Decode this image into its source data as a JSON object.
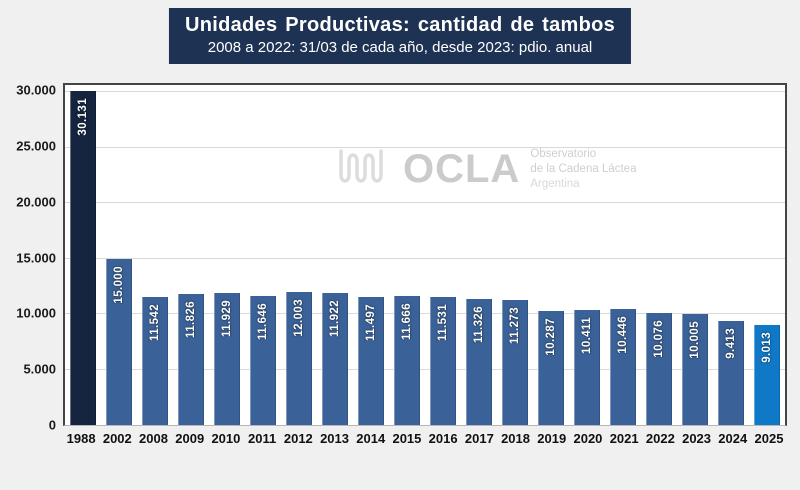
{
  "watermark": {
    "brand": "OCLA",
    "line1": "Observatorio",
    "line2": "de la Cadena Láctea",
    "line3": "Argentina"
  },
  "chart_data": {
    "type": "bar",
    "title": "Unidades Productivas: cantidad de tambos",
    "subtitle": "2008 a 2022: 31/03 de cada año, desde 2023: pdio. anual",
    "xlabel": "",
    "ylabel": "",
    "categories": [
      "1988",
      "2002",
      "2008",
      "2009",
      "2010",
      "2011",
      "2012",
      "2013",
      "2014",
      "2015",
      "2016",
      "2017",
      "2018",
      "2019",
      "2020",
      "2021",
      "2022",
      "2023",
      "2024",
      "2025"
    ],
    "values": [
      30131,
      15000,
      11542,
      11826,
      11929,
      11646,
      12003,
      11922,
      11497,
      11666,
      11531,
      11326,
      11273,
      10287,
      10411,
      10446,
      10076,
      10005,
      9413,
      9013
    ],
    "value_labels": [
      "30.131",
      "15.000",
      "11.542",
      "11.826",
      "11.929",
      "11.646",
      "12.003",
      "11.922",
      "11.497",
      "11.666",
      "11.531",
      "11.326",
      "11.273",
      "10.287",
      "10.411",
      "10.446",
      "10.076",
      "10.005",
      "9.413",
      "9.013"
    ],
    "bar_colors": [
      "#152540",
      "#3A6298",
      "#3A6298",
      "#3A6298",
      "#3A6298",
      "#3A6298",
      "#3A6298",
      "#3A6298",
      "#3A6298",
      "#3A6298",
      "#3A6298",
      "#3A6298",
      "#3A6298",
      "#3A6298",
      "#3A6298",
      "#3A6298",
      "#3A6298",
      "#3A6298",
      "#3A6298",
      "#0F79C8"
    ],
    "y_ticks": [
      {
        "value": 0,
        "label": "0"
      },
      {
        "value": 5000,
        "label": "5.000"
      },
      {
        "value": 10000,
        "label": "10.000"
      },
      {
        "value": 15000,
        "label": "15.000"
      },
      {
        "value": 20000,
        "label": "20.000"
      },
      {
        "value": 25000,
        "label": "25.000"
      },
      {
        "value": 30000,
        "label": "30.000"
      }
    ],
    "ylim": [
      0,
      30650
    ],
    "grid": true,
    "legend": false,
    "colors": {
      "title_background": "#1E3353",
      "title_text": "#FFFFFF",
      "page_background": "#F0F0F0",
      "plot_background": "#FFFFFF",
      "gridline": "#D9D9D9",
      "bar_default": "#3A6298",
      "bar_1988": "#152540",
      "bar_2025": "#0F79C8",
      "value_label_text": "#FFFFFF"
    }
  }
}
